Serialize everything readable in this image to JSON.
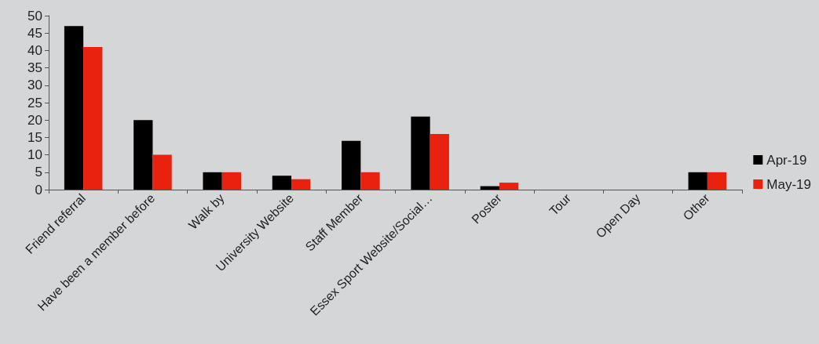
{
  "chart_data": {
    "type": "bar",
    "categories": [
      "Friend referral",
      "Have been a member before",
      "Walk by",
      "University Website",
      "Staff Member",
      "Essex Sport Website/Social…",
      "Poster",
      "Tour",
      "Open Day",
      "Other"
    ],
    "series": [
      {
        "name": "Apr-19",
        "color": "#000000",
        "values": [
          47,
          20,
          5,
          4,
          14,
          21,
          1,
          0,
          0,
          5
        ]
      },
      {
        "name": "May-19",
        "color": "#e8220e",
        "values": [
          41,
          10,
          5,
          3,
          5,
          16,
          2,
          0,
          0,
          5
        ]
      }
    ],
    "ylim": [
      0,
      50
    ],
    "yticks": [
      0,
      5,
      10,
      15,
      20,
      25,
      30,
      35,
      40,
      45,
      50
    ],
    "grid": false,
    "legend": "right"
  }
}
